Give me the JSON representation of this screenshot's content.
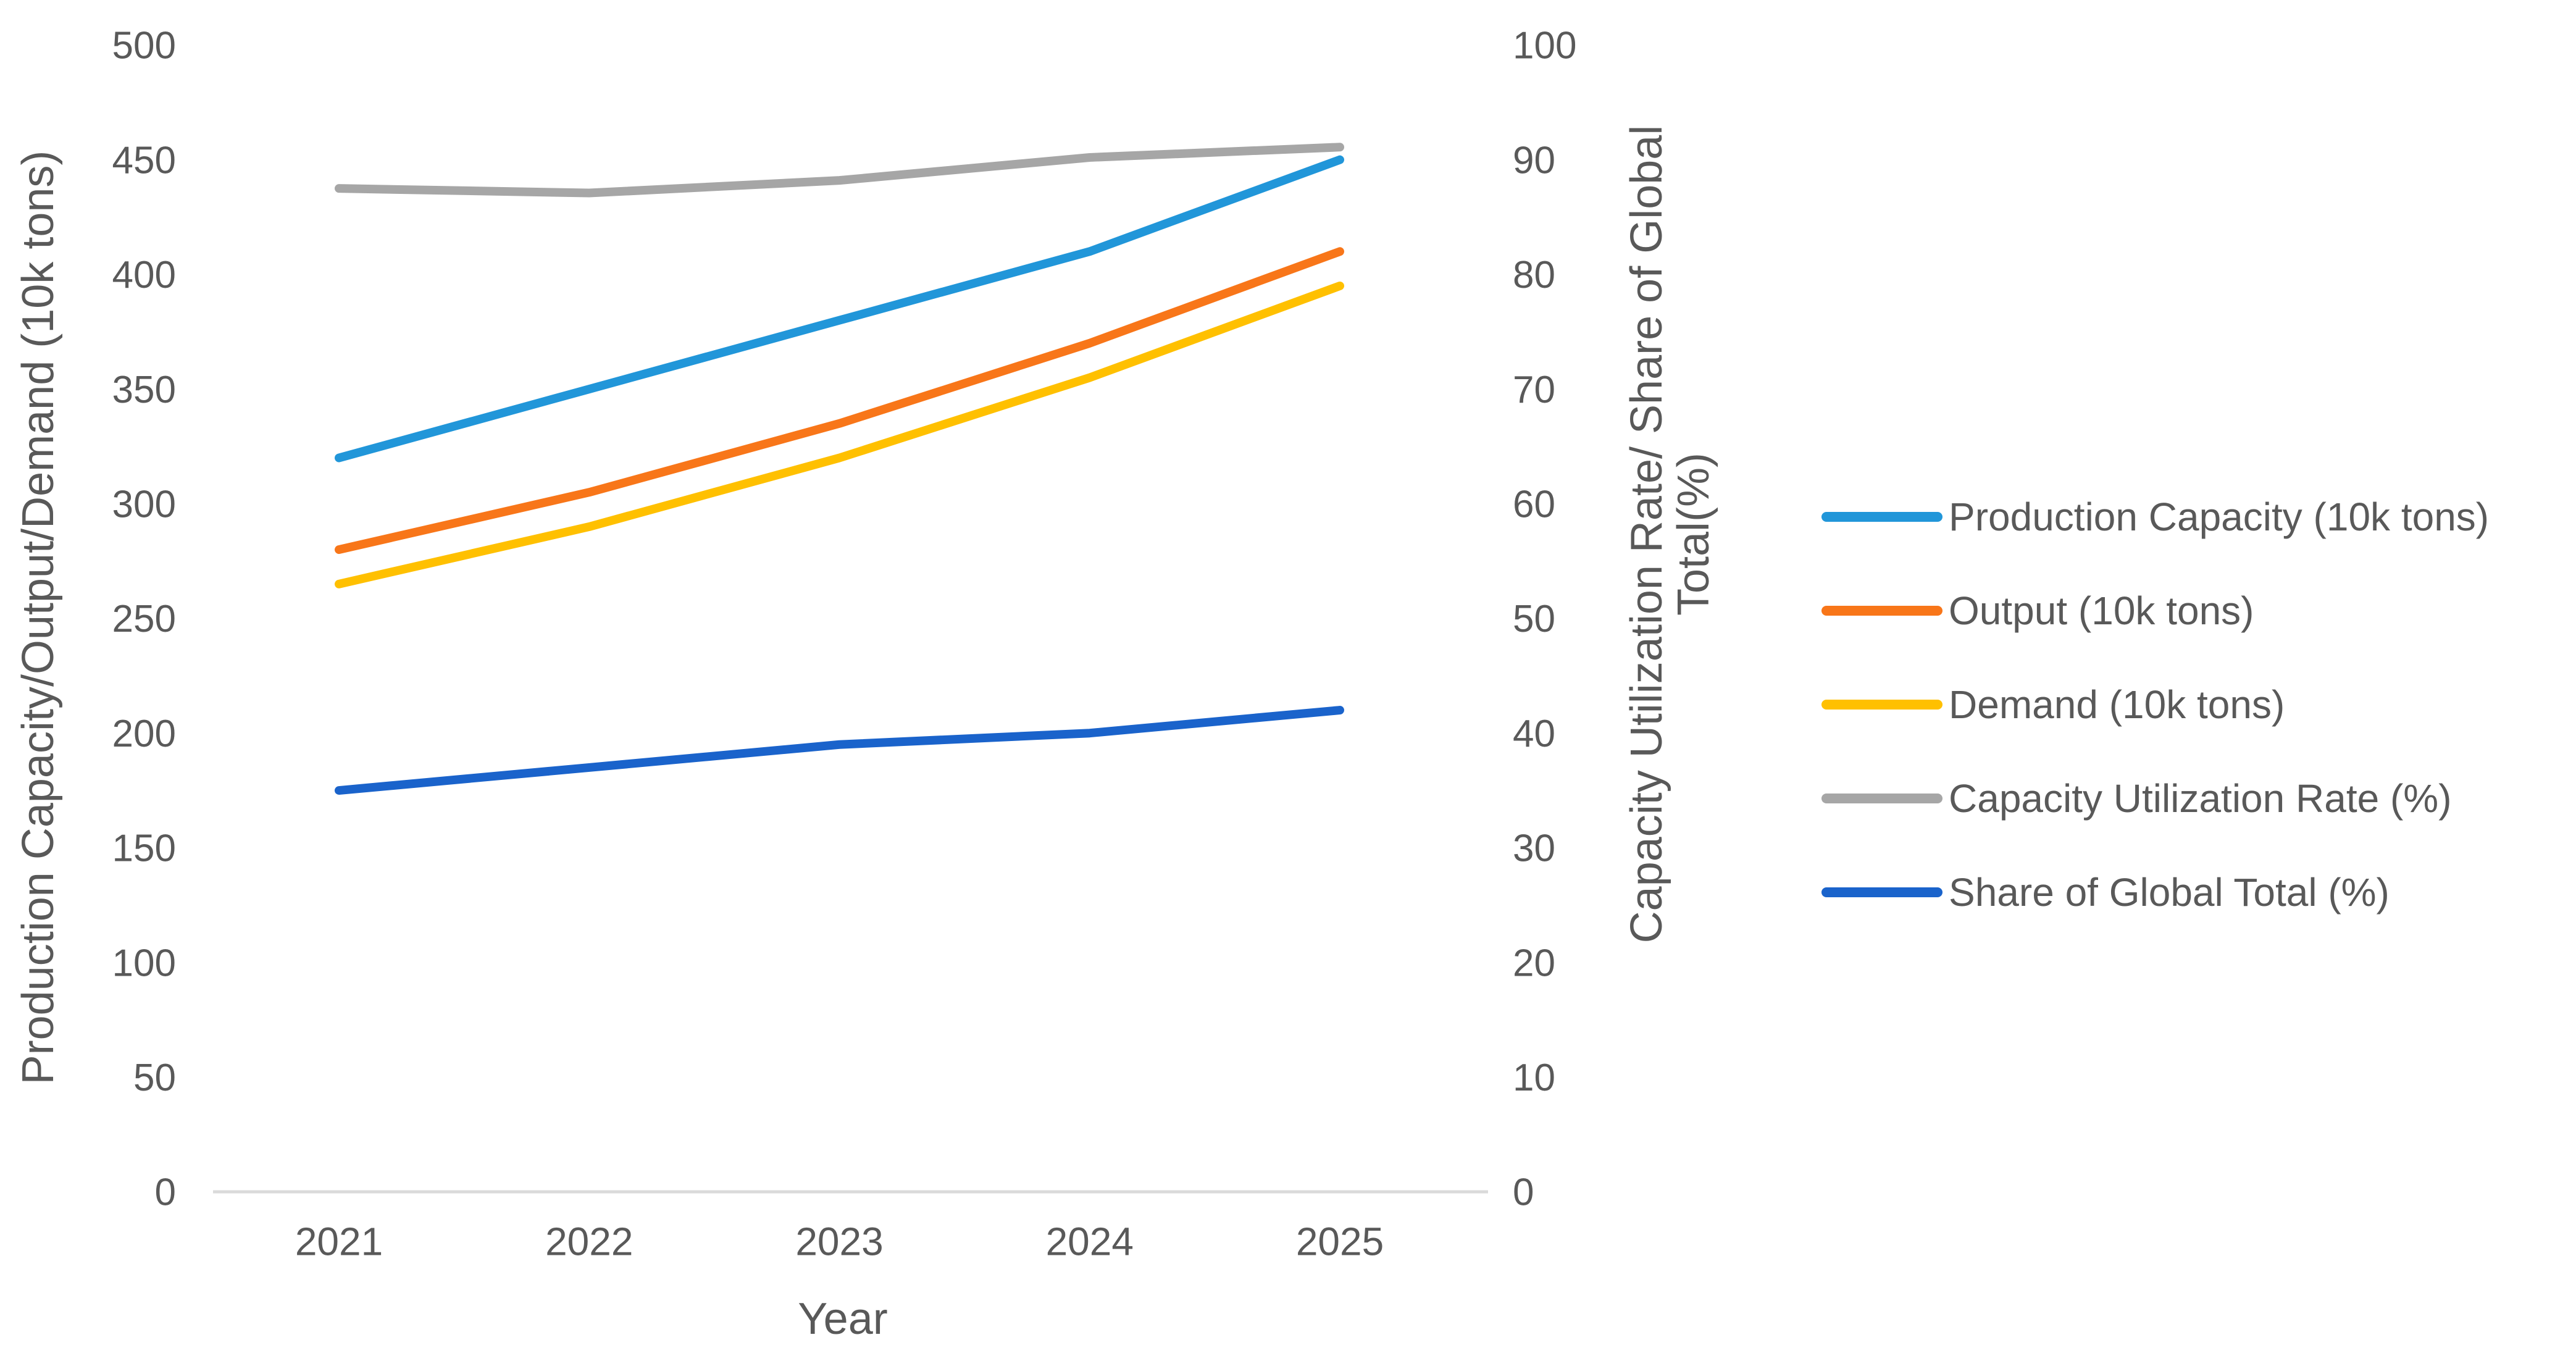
{
  "chart_data": {
    "type": "line",
    "title": "",
    "xlabel": "Year",
    "x": [
      "2021",
      "2022",
      "2023",
      "2024",
      "2025"
    ],
    "left_axis": {
      "label": "Production Capacity/Output/Demand (10k tons)",
      "min": 0,
      "max": 500,
      "tick_step": 50,
      "ticks": [
        0,
        50,
        100,
        150,
        200,
        250,
        300,
        350,
        400,
        450,
        500
      ]
    },
    "right_axis": {
      "label_line1": "Capacity Utilization Rate/ Share of Global",
      "label_line2": "Total(%)",
      "min": 0,
      "max": 100,
      "tick_step": 10,
      "ticks": [
        0,
        10,
        20,
        30,
        40,
        50,
        60,
        70,
        80,
        90,
        100
      ]
    },
    "series": [
      {
        "name": "Production Capacity (10k tons)",
        "axis": "left",
        "color": "#2196D9",
        "values": [
          320,
          350,
          380,
          410,
          450
        ]
      },
      {
        "name": "Output (10k tons)",
        "axis": "left",
        "color": "#F87619",
        "values": [
          280,
          305,
          335,
          370,
          410
        ]
      },
      {
        "name": "Demand (10k tons)",
        "axis": "left",
        "color": "#FFC000",
        "values": [
          265,
          290,
          320,
          355,
          395
        ]
      },
      {
        "name": "Capacity Utilization Rate (%)",
        "axis": "right",
        "color": "#A6A6A6",
        "values": [
          87.5,
          87.1,
          88.2,
          90.2,
          91.1
        ]
      },
      {
        "name": "Share of Global Total (%)",
        "axis": "right",
        "color": "#1A63CB",
        "values": [
          35,
          37,
          39,
          40,
          42
        ]
      }
    ],
    "legend_position": "right",
    "grid": false,
    "text_color": "#595959",
    "axis_line_color": "#DADADA"
  }
}
